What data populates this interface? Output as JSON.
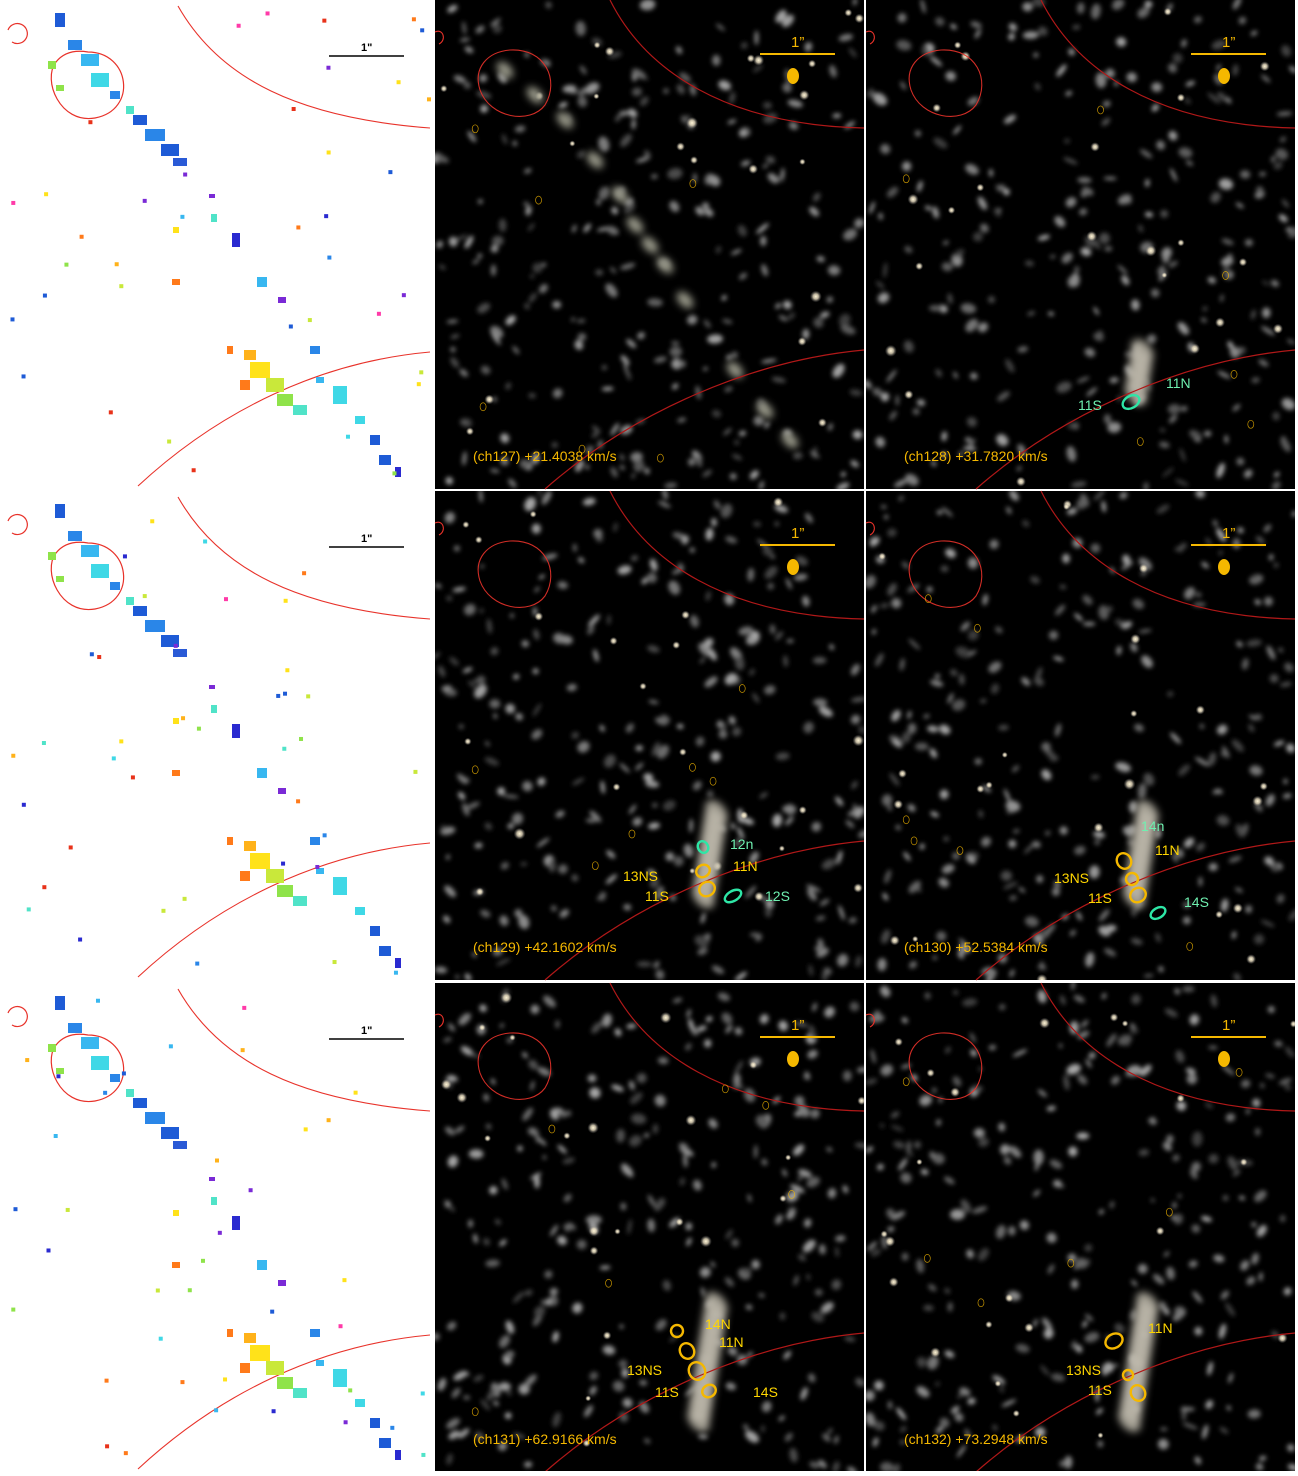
{
  "colors": {
    "red_contour": "#e8322a",
    "dark_red_contour": "#9b1a1a",
    "gold": "#f5b800",
    "label_yellow": "#ffd600",
    "label_green": "#6ff0b0",
    "green_contour": "#2ee6a6"
  },
  "scalebar_label": "1\"",
  "scalebar_label_dark": "1”",
  "rows": [
    {
      "left_panel": {
        "scalebar": "1\""
      },
      "panels": [
        {
          "caption": "(ch127) +21.4038 km/s",
          "labels": []
        },
        {
          "caption": "(ch128)  +31.7820 km/s",
          "labels": [
            {
              "text": "11N",
              "color": "green"
            },
            {
              "text": "11S",
              "color": "green"
            }
          ]
        }
      ]
    },
    {
      "left_panel": {
        "scalebar": "1\""
      },
      "panels": [
        {
          "caption": "(ch129) +42.1602 km/s",
          "labels": [
            {
              "text": "12n",
              "color": "green"
            },
            {
              "text": "11N",
              "color": "yellow"
            },
            {
              "text": "13NS",
              "color": "yellow"
            },
            {
              "text": "11S",
              "color": "yellow"
            },
            {
              "text": "12S",
              "color": "green"
            }
          ]
        },
        {
          "caption": "(ch130) +52.5384 km/s",
          "labels": [
            {
              "text": "14n",
              "color": "green"
            },
            {
              "text": "11N",
              "color": "yellow"
            },
            {
              "text": "13NS",
              "color": "yellow"
            },
            {
              "text": "11S",
              "color": "yellow"
            },
            {
              "text": "14S",
              "color": "green"
            }
          ]
        }
      ]
    },
    {
      "left_panel": {
        "scalebar": "1\""
      },
      "panels": [
        {
          "caption": "(ch131) +62.9166 km/s",
          "labels": [
            {
              "text": "14N",
              "color": "yellow"
            },
            {
              "text": "11N",
              "color": "yellow"
            },
            {
              "text": "13NS",
              "color": "yellow"
            },
            {
              "text": "11S",
              "color": "yellow"
            },
            {
              "text": "14S",
              "color": "yellow"
            }
          ]
        },
        {
          "caption": "(ch132) +73.2948 km/s",
          "labels": [
            {
              "text": "11N",
              "color": "yellow"
            },
            {
              "text": "13NS",
              "color": "yellow"
            },
            {
              "text": "11S",
              "color": "yellow"
            }
          ]
        }
      ]
    }
  ]
}
